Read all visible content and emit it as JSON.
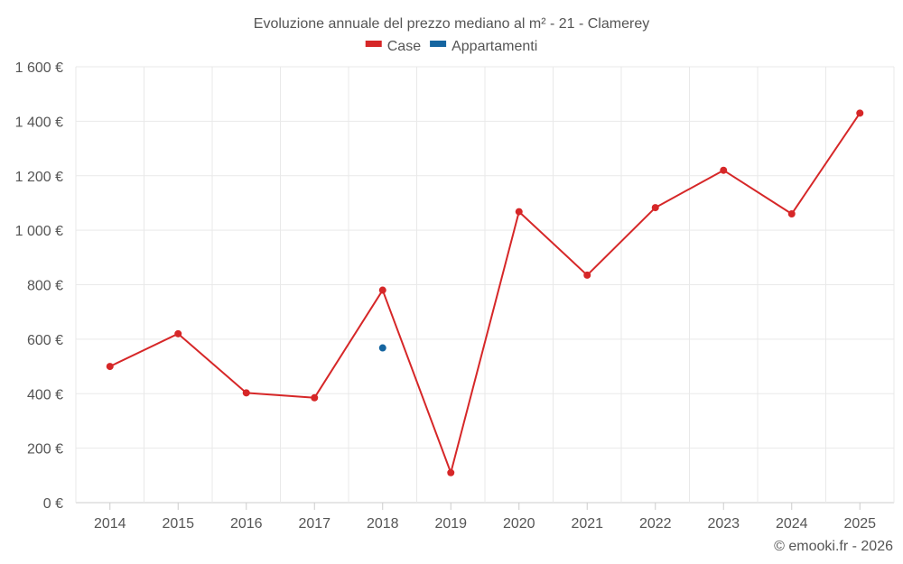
{
  "chart_data": {
    "type": "line",
    "title": "Evoluzione annuale del prezzo mediano al m² - 21 - Clamerey",
    "x": [
      "2014",
      "2015",
      "2016",
      "2017",
      "2018",
      "2019",
      "2020",
      "2021",
      "2022",
      "2023",
      "2024",
      "2025"
    ],
    "y_ticks": [
      "0 €",
      "200 €",
      "400 €",
      "600 €",
      "800 €",
      "1 000 €",
      "1 200 €",
      "1 400 €",
      "1 600 €"
    ],
    "ylim": [
      0,
      1600
    ],
    "grid": true,
    "legend_position": "top-center",
    "series": [
      {
        "name": "Case",
        "color": "#d62728",
        "values": [
          500,
          620,
          403,
          385,
          780,
          110,
          1068,
          835,
          1083,
          1220,
          1060,
          1430
        ]
      },
      {
        "name": "Appartamenti",
        "color": "#1565a0",
        "values": [
          null,
          null,
          null,
          null,
          568,
          null,
          null,
          null,
          null,
          null,
          null,
          null
        ]
      }
    ]
  },
  "credit": "© emooki.fr - 2026"
}
